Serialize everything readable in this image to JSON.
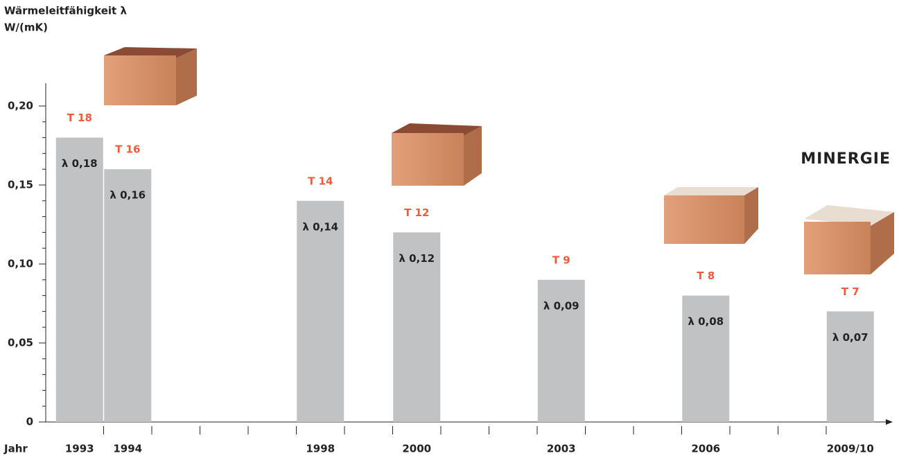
{
  "chart_data": {
    "type": "bar",
    "ylabel": [
      "Wärmeleitfähigkeit λ",
      "W/(mK)"
    ],
    "xlabel": "Jahr",
    "categories": [
      "1993",
      "1994",
      null,
      null,
      null,
      "1998",
      null,
      "2000",
      null,
      null,
      "2003",
      null,
      null,
      "2006",
      null,
      null,
      "2009/10"
    ],
    "values": [
      0.18,
      0.16,
      null,
      null,
      null,
      0.14,
      null,
      0.12,
      null,
      null,
      0.09,
      null,
      null,
      0.08,
      null,
      null,
      0.07
    ],
    "value_labels": [
      "λ 0,18",
      "λ 0,16",
      null,
      null,
      null,
      "λ 0,14",
      null,
      "λ 0,12",
      null,
      null,
      "λ 0,09",
      null,
      null,
      "λ 0,08",
      null,
      null,
      "λ 0,07"
    ],
    "brick_labels": [
      "T 18",
      "T 16",
      null,
      null,
      null,
      "T 14",
      null,
      "T 12",
      null,
      null,
      "T 9",
      null,
      null,
      "T 8",
      null,
      null,
      "T 7"
    ],
    "color": "#c1c2c4",
    "ylim": [
      0,
      0.215
    ],
    "yticks": [
      0,
      {
        "value": 0.05,
        "label": "0,05"
      },
      {
        "value": 0.1,
        "label": "0,10"
      },
      {
        "value": 0.15,
        "label": "0,15"
      },
      {
        "value": 0.2,
        "label": "0,20"
      }
    ],
    "minor_yticks": [
      0.01,
      0.02,
      0.03,
      0.04,
      0.06,
      0.07,
      0.08,
      0.09,
      0.11,
      0.12,
      0.13,
      0.14,
      0.16,
      0.17,
      0.18,
      0.19
    ],
    "logo": "MINERGIE"
  }
}
